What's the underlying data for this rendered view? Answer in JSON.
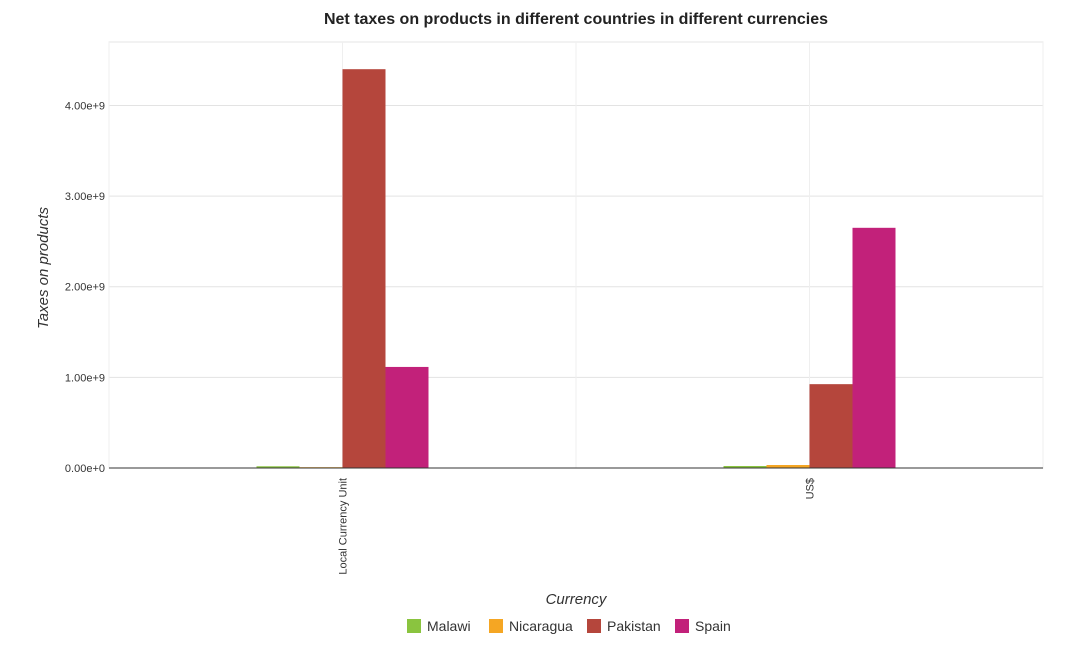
{
  "chart_data": {
    "type": "bar",
    "title": "Net taxes on products in different countries in different currencies",
    "xlabel": "Currency",
    "ylabel": "Taxes on products",
    "categories": [
      "Local Currency Unit",
      "US$"
    ],
    "series": [
      {
        "name": "Malawi",
        "color": "#8ac43f",
        "values": [
          19000000,
          22000000
        ]
      },
      {
        "name": "Nicaragua",
        "color": "#f5a623",
        "values": [
          1000000,
          33000000
        ]
      },
      {
        "name": "Pakistan",
        "color": "#b5463c",
        "values": [
          4400000000,
          925000000
        ]
      },
      {
        "name": "Spain",
        "color": "#c2217a",
        "values": [
          1115000000,
          2650000000
        ]
      }
    ],
    "ylim": [
      0,
      4700000000
    ],
    "yticks": [
      0,
      1000000000,
      2000000000,
      3000000000,
      4000000000
    ],
    "ytick_labels": [
      "0.00e+0",
      "1.00e+9",
      "2.00e+9",
      "3.00e+9",
      "4.00e+9"
    ],
    "grid": true,
    "legend_position": "bottom-center"
  }
}
